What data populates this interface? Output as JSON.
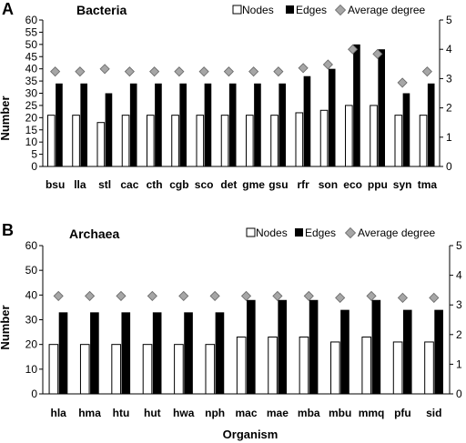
{
  "legend": {
    "nodes": "Nodes",
    "edges": "Edges",
    "avg": "Average degree"
  },
  "axis": {
    "ylabel": "Number",
    "xlabel": "Organism"
  },
  "colors": {
    "nodes_fill": "#ffffff",
    "edges_fill": "#000000",
    "avg_fill": "#a6a6a6"
  },
  "chart_data": [
    {
      "type": "bar",
      "panel": "A",
      "title": "Bacteria",
      "categories": [
        "bsu",
        "lla",
        "stl",
        "cac",
        "cth",
        "cgb",
        "sco",
        "det",
        "gme",
        "gsu",
        "rfr",
        "son",
        "eco",
        "ppu",
        "syn",
        "tma"
      ],
      "series": [
        {
          "name": "Nodes",
          "axis": "left",
          "values": [
            21,
            21,
            18,
            21,
            21,
            21,
            21,
            21,
            21,
            21,
            22,
            23,
            25,
            25,
            21,
            21
          ]
        },
        {
          "name": "Edges",
          "axis": "left",
          "values": [
            34,
            34,
            30,
            34,
            34,
            34,
            34,
            34,
            34,
            34,
            37,
            40,
            50,
            48,
            30,
            34
          ]
        },
        {
          "name": "Average degree",
          "axis": "right",
          "marker": "diamond",
          "values": [
            3.24,
            3.24,
            3.33,
            3.24,
            3.24,
            3.24,
            3.24,
            3.24,
            3.24,
            3.24,
            3.36,
            3.48,
            4.0,
            3.84,
            2.86,
            3.24
          ]
        }
      ],
      "ylim": [
        0,
        60
      ],
      "yticks": [
        0,
        5,
        10,
        15,
        20,
        25,
        30,
        35,
        40,
        45,
        50,
        55,
        60
      ],
      "y2lim": [
        0,
        5
      ],
      "y2ticks": [
        0,
        1,
        2,
        3,
        4,
        5
      ],
      "ylabel": "Number",
      "xlabel": "",
      "legend_position": "top-right",
      "grid": false
    },
    {
      "type": "bar",
      "panel": "B",
      "title": "Archaea",
      "categories": [
        "hla",
        "hma",
        "htu",
        "hut",
        "hwa",
        "nph",
        "mac",
        "mae",
        "mba",
        "mbu",
        "mmq",
        "pfu",
        "sid"
      ],
      "series": [
        {
          "name": "Nodes",
          "axis": "left",
          "values": [
            20,
            20,
            20,
            20,
            20,
            20,
            23,
            23,
            23,
            21,
            23,
            21,
            21
          ]
        },
        {
          "name": "Edges",
          "axis": "left",
          "values": [
            33,
            33,
            33,
            33,
            33,
            33,
            38,
            38,
            38,
            34,
            38,
            34,
            34
          ]
        },
        {
          "name": "Average degree",
          "axis": "right",
          "marker": "diamond",
          "values": [
            3.3,
            3.3,
            3.3,
            3.3,
            3.3,
            3.3,
            3.3,
            3.3,
            3.3,
            3.24,
            3.3,
            3.24,
            3.24
          ]
        }
      ],
      "ylim": [
        0,
        60
      ],
      "yticks": [
        0,
        10,
        20,
        30,
        40,
        50,
        60
      ],
      "y2lim": [
        0,
        5
      ],
      "y2ticks": [
        0,
        1,
        2,
        3,
        4,
        5
      ],
      "ylabel": "Number",
      "xlabel": "Organism",
      "legend_position": "top-right",
      "grid": false
    }
  ]
}
